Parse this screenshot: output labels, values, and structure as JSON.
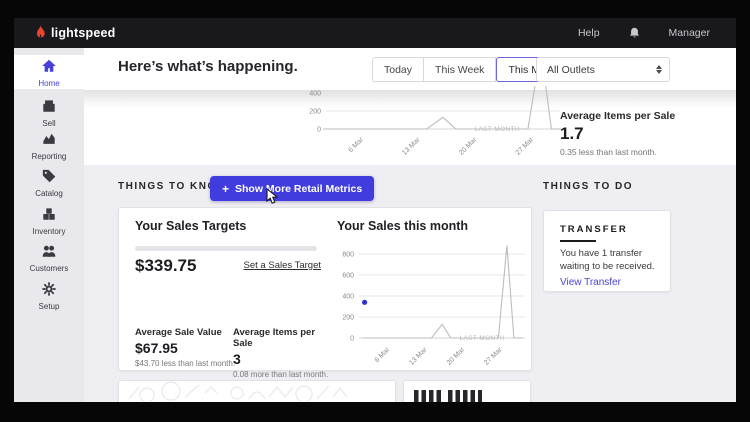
{
  "topbar": {
    "brand": "lightspeed",
    "help": "Help",
    "user": "Manager"
  },
  "sidebar": [
    {
      "id": "home",
      "label": "Home",
      "active": true
    },
    {
      "id": "sell",
      "label": "Sell",
      "active": false
    },
    {
      "id": "reporting",
      "label": "Reporting",
      "active": false
    },
    {
      "id": "catalog",
      "label": "Catalog",
      "active": false
    },
    {
      "id": "inventory",
      "label": "Inventory",
      "active": false
    },
    {
      "id": "customers",
      "label": "Customers",
      "active": false
    },
    {
      "id": "setup",
      "label": "Setup",
      "active": false
    }
  ],
  "header": {
    "title": "Here’s what’s happening.",
    "ranges": [
      "Today",
      "This Week",
      "This Month"
    ],
    "selected_range": "This Month",
    "outlets": "All Outlets"
  },
  "hero_metric": {
    "label": "Average Items per Sale",
    "value": "1.7",
    "delta": "0.35 less than last month."
  },
  "things_to_know": {
    "heading": "THINGS TO KNOW",
    "plus": "+",
    "show_more": "Show More Retail Metrics"
  },
  "things_to_do": {
    "heading": "THINGS TO DO"
  },
  "sales_targets": {
    "title": "Your Sales Targets",
    "amount": "$339.75",
    "set_target_link": "Set a Sales Target",
    "metrics": [
      {
        "label": "Average Sale Value",
        "value": "$67.95",
        "delta": "$43.70 less than last month."
      },
      {
        "label": "Average Items per Sale",
        "value": "3",
        "delta": "0.08 more than last month."
      }
    ]
  },
  "transfer": {
    "heading": "TRANSFER",
    "body": "You have 1 transfer waiting to be received.",
    "link": "View Transfer"
  },
  "colors": {
    "accent": "#403cdd",
    "link": "#4a45d6",
    "active_nav": "#4741d8",
    "line": "#bcbcc1",
    "dot": "#2f2fd4"
  },
  "chart_data": [
    {
      "id": "hero-trend",
      "type": "line",
      "title": "",
      "x_unit": "day of March",
      "x_ticks": [
        {
          "day": 6,
          "label": "6 Mar"
        },
        {
          "day": 13,
          "label": "13 Mar"
        },
        {
          "day": 20,
          "label": "20 Mar"
        },
        {
          "day": 27,
          "label": "27 Mar"
        }
      ],
      "y_ticks": [
        0,
        200,
        400
      ],
      "annotation": "LAST MONTH",
      "series": [
        {
          "name": "Last month",
          "x_days": [
            1,
            13.8,
            15.8,
            17.4,
            26.3,
            27.9,
            29.2,
            30.5
          ],
          "values": [
            0,
            0,
            130,
            0,
            0,
            880,
            0,
            0
          ]
        }
      ]
    },
    {
      "id": "your-sales-this-month",
      "type": "line",
      "title": "Your Sales this month",
      "x_unit": "day of March",
      "x_ticks": [
        {
          "day": 6,
          "label": "6 Mar"
        },
        {
          "day": 13,
          "label": "13 Mar"
        },
        {
          "day": 20,
          "label": "20 Mar"
        },
        {
          "day": 27,
          "label": "27 Mar"
        }
      ],
      "y_ticks": [
        0,
        200,
        400,
        600,
        800
      ],
      "ylim": [
        0,
        880
      ],
      "annotation": "LAST MONTH",
      "series": [
        {
          "name": "Last month",
          "x_days": [
            1,
            13.8,
            15.8,
            17.4,
            26.3,
            27.9,
            29.2,
            30.8
          ],
          "values": [
            0,
            0,
            130,
            0,
            0,
            880,
            0,
            0
          ]
        }
      ],
      "point": {
        "x_day": 1.3,
        "value": 340,
        "color": "#2f2fd4"
      }
    }
  ]
}
